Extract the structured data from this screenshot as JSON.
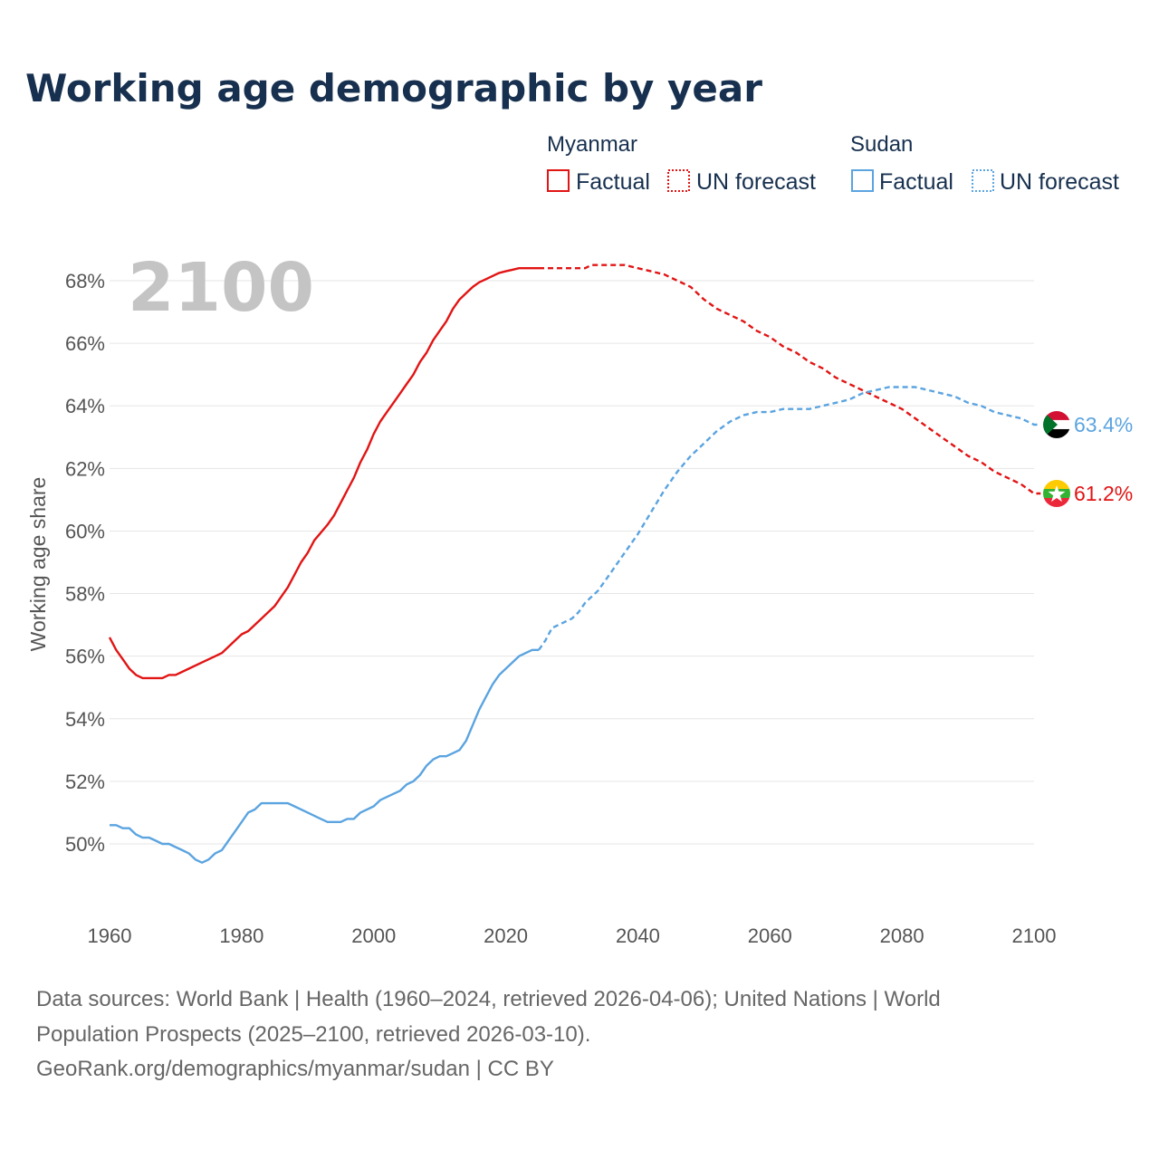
{
  "chart_data": {
    "type": "line",
    "title": "Working age demographic by year",
    "ylabel": "Working age share",
    "xlabel": "",
    "year_label": "2100",
    "x_ticks": [
      "1960",
      "1980",
      "2000",
      "2020",
      "2040",
      "2060",
      "2080",
      "2100"
    ],
    "y_ticks": [
      "50%",
      "52%",
      "54%",
      "56%",
      "58%",
      "60%",
      "62%",
      "64%",
      "66%",
      "68%"
    ],
    "xlim": [
      1960,
      2100
    ],
    "ylim": [
      48.5,
      69.5
    ],
    "forecast_start": 2025,
    "legend": {
      "groups": [
        {
          "name": "Myanmar",
          "factual": "Factual",
          "forecast": "UN forecast",
          "color": "#e21414"
        },
        {
          "name": "Sudan",
          "factual": "Factual",
          "forecast": "UN forecast",
          "color": "#5ba4e0"
        }
      ]
    },
    "series": [
      {
        "name": "Myanmar",
        "color": "#e21414",
        "end_label": "61.2%",
        "flag_icon": "myanmar-flag-icon",
        "points": [
          [
            1960,
            56.6
          ],
          [
            1961,
            56.2
          ],
          [
            1962,
            55.9
          ],
          [
            1963,
            55.6
          ],
          [
            1964,
            55.4
          ],
          [
            1965,
            55.3
          ],
          [
            1966,
            55.3
          ],
          [
            1967,
            55.3
          ],
          [
            1968,
            55.3
          ],
          [
            1969,
            55.4
          ],
          [
            1970,
            55.4
          ],
          [
            1972,
            55.6
          ],
          [
            1974,
            55.8
          ],
          [
            1976,
            56.0
          ],
          [
            1977,
            56.1
          ],
          [
            1979,
            56.5
          ],
          [
            1980,
            56.7
          ],
          [
            1981,
            56.8
          ],
          [
            1983,
            57.2
          ],
          [
            1985,
            57.6
          ],
          [
            1987,
            58.2
          ],
          [
            1989,
            59.0
          ],
          [
            1990,
            59.3
          ],
          [
            1991,
            59.7
          ],
          [
            1993,
            60.2
          ],
          [
            1994,
            60.5
          ],
          [
            1996,
            61.3
          ],
          [
            1997,
            61.7
          ],
          [
            1998,
            62.2
          ],
          [
            1999,
            62.6
          ],
          [
            2000,
            63.1
          ],
          [
            2001,
            63.5
          ],
          [
            2002,
            63.8
          ],
          [
            2003,
            64.1
          ],
          [
            2004,
            64.4
          ],
          [
            2005,
            64.7
          ],
          [
            2006,
            65.0
          ],
          [
            2007,
            65.4
          ],
          [
            2008,
            65.7
          ],
          [
            2009,
            66.1
          ],
          [
            2010,
            66.4
          ],
          [
            2011,
            66.7
          ],
          [
            2012,
            67.1
          ],
          [
            2013,
            67.4
          ],
          [
            2014,
            67.6
          ],
          [
            2015,
            67.8
          ],
          [
            2016,
            67.95
          ],
          [
            2017,
            68.05
          ],
          [
            2018,
            68.15
          ],
          [
            2019,
            68.25
          ],
          [
            2020,
            68.3
          ],
          [
            2021,
            68.35
          ],
          [
            2022,
            68.4
          ],
          [
            2023,
            68.4
          ],
          [
            2024,
            68.4
          ],
          [
            2025,
            68.4
          ],
          [
            2028,
            68.4
          ],
          [
            2030,
            68.4
          ],
          [
            2032,
            68.4
          ],
          [
            2033,
            68.5
          ],
          [
            2035,
            68.5
          ],
          [
            2038,
            68.5
          ],
          [
            2040,
            68.4
          ],
          [
            2042,
            68.3
          ],
          [
            2044,
            68.2
          ],
          [
            2046,
            68.0
          ],
          [
            2048,
            67.8
          ],
          [
            2050,
            67.4
          ],
          [
            2052,
            67.1
          ],
          [
            2054,
            66.9
          ],
          [
            2056,
            66.7
          ],
          [
            2058,
            66.4
          ],
          [
            2060,
            66.2
          ],
          [
            2062,
            65.9
          ],
          [
            2064,
            65.7
          ],
          [
            2066,
            65.4
          ],
          [
            2068,
            65.2
          ],
          [
            2070,
            64.9
          ],
          [
            2072,
            64.7
          ],
          [
            2074,
            64.5
          ],
          [
            2076,
            64.3
          ],
          [
            2078,
            64.1
          ],
          [
            2080,
            63.9
          ],
          [
            2082,
            63.6
          ],
          [
            2084,
            63.3
          ],
          [
            2086,
            63.0
          ],
          [
            2088,
            62.7
          ],
          [
            2090,
            62.4
          ],
          [
            2092,
            62.2
          ],
          [
            2094,
            61.9
          ],
          [
            2096,
            61.7
          ],
          [
            2098,
            61.5
          ],
          [
            2100,
            61.2
          ],
          [
            2101,
            61.2
          ]
        ]
      },
      {
        "name": "Sudan",
        "color": "#5ba4e0",
        "end_label": "63.4%",
        "flag_icon": "sudan-flag-icon",
        "points": [
          [
            1960,
            50.6
          ],
          [
            1961,
            50.6
          ],
          [
            1962,
            50.5
          ],
          [
            1963,
            50.5
          ],
          [
            1964,
            50.3
          ],
          [
            1965,
            50.2
          ],
          [
            1966,
            50.2
          ],
          [
            1967,
            50.1
          ],
          [
            1968,
            50.0
          ],
          [
            1969,
            50.0
          ],
          [
            1970,
            49.9
          ],
          [
            1971,
            49.8
          ],
          [
            1972,
            49.7
          ],
          [
            1973,
            49.5
          ],
          [
            1974,
            49.4
          ],
          [
            1975,
            49.5
          ],
          [
            1976,
            49.7
          ],
          [
            1977,
            49.8
          ],
          [
            1978,
            50.1
          ],
          [
            1979,
            50.4
          ],
          [
            1980,
            50.7
          ],
          [
            1981,
            51.0
          ],
          [
            1982,
            51.1
          ],
          [
            1983,
            51.3
          ],
          [
            1984,
            51.3
          ],
          [
            1985,
            51.3
          ],
          [
            1986,
            51.3
          ],
          [
            1987,
            51.3
          ],
          [
            1988,
            51.2
          ],
          [
            1990,
            51.0
          ],
          [
            1992,
            50.8
          ],
          [
            1993,
            50.7
          ],
          [
            1994,
            50.7
          ],
          [
            1995,
            50.7
          ],
          [
            1996,
            50.8
          ],
          [
            1997,
            50.8
          ],
          [
            1998,
            51.0
          ],
          [
            2000,
            51.2
          ],
          [
            2001,
            51.4
          ],
          [
            2003,
            51.6
          ],
          [
            2004,
            51.7
          ],
          [
            2005,
            51.9
          ],
          [
            2006,
            52.0
          ],
          [
            2007,
            52.2
          ],
          [
            2008,
            52.5
          ],
          [
            2009,
            52.7
          ],
          [
            2010,
            52.8
          ],
          [
            2011,
            52.8
          ],
          [
            2012,
            52.9
          ],
          [
            2013,
            53.0
          ],
          [
            2014,
            53.3
          ],
          [
            2015,
            53.8
          ],
          [
            2016,
            54.3
          ],
          [
            2017,
            54.7
          ],
          [
            2018,
            55.1
          ],
          [
            2019,
            55.4
          ],
          [
            2020,
            55.6
          ],
          [
            2021,
            55.8
          ],
          [
            2022,
            56.0
          ],
          [
            2023,
            56.1
          ],
          [
            2024,
            56.2
          ],
          [
            2025,
            56.2
          ],
          [
            2026,
            56.5
          ],
          [
            2027,
            56.9
          ],
          [
            2028,
            57.0
          ],
          [
            2030,
            57.2
          ],
          [
            2031,
            57.4
          ],
          [
            2032,
            57.7
          ],
          [
            2034,
            58.1
          ],
          [
            2036,
            58.7
          ],
          [
            2038,
            59.3
          ],
          [
            2040,
            59.9
          ],
          [
            2042,
            60.6
          ],
          [
            2044,
            61.3
          ],
          [
            2046,
            61.9
          ],
          [
            2048,
            62.4
          ],
          [
            2050,
            62.8
          ],
          [
            2052,
            63.2
          ],
          [
            2054,
            63.5
          ],
          [
            2056,
            63.7
          ],
          [
            2058,
            63.8
          ],
          [
            2060,
            63.8
          ],
          [
            2062,
            63.9
          ],
          [
            2064,
            63.9
          ],
          [
            2066,
            63.9
          ],
          [
            2068,
            64.0
          ],
          [
            2070,
            64.1
          ],
          [
            2072,
            64.2
          ],
          [
            2074,
            64.4
          ],
          [
            2076,
            64.5
          ],
          [
            2078,
            64.6
          ],
          [
            2080,
            64.6
          ],
          [
            2082,
            64.6
          ],
          [
            2084,
            64.5
          ],
          [
            2086,
            64.4
          ],
          [
            2088,
            64.3
          ],
          [
            2090,
            64.1
          ],
          [
            2092,
            64.0
          ],
          [
            2094,
            63.8
          ],
          [
            2096,
            63.7
          ],
          [
            2098,
            63.6
          ],
          [
            2100,
            63.4
          ],
          [
            2101,
            63.4
          ]
        ]
      }
    ]
  },
  "footer": {
    "line1": "Data sources: World Bank | Health (1960–2024, retrieved 2026-04-06); United Nations | World",
    "line2": "Population Prospects (2025–2100, retrieved 2026-03-10).",
    "line3": "GeoRank.org/demographics/myanmar/sudan | CC BY"
  }
}
